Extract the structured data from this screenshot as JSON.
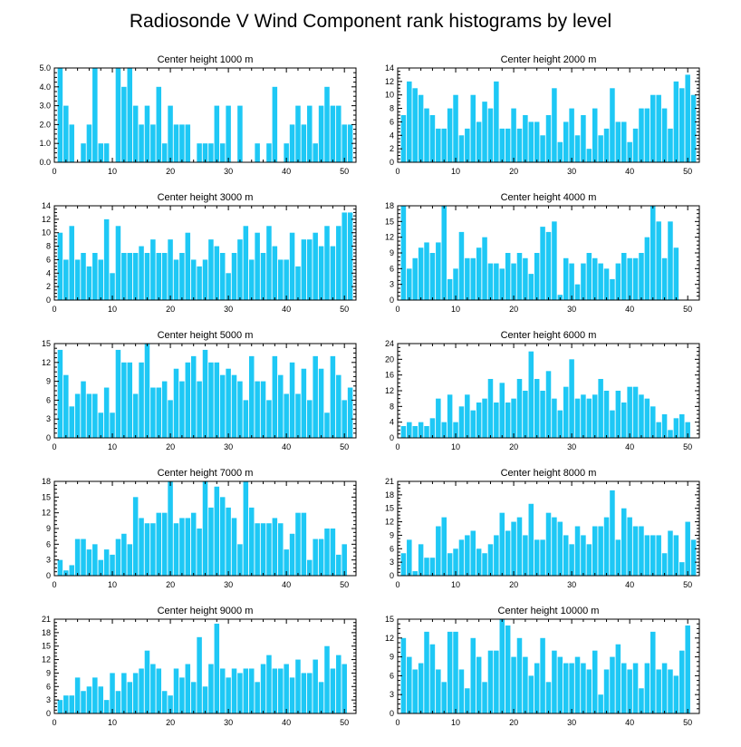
{
  "figure": {
    "title": "Radiosonde V Wind Component rank histograms by level"
  },
  "chart_data": [
    {
      "type": "bar",
      "title": "Center height 1000 m",
      "xlim": [
        0,
        52
      ],
      "xticks": [
        0,
        10,
        20,
        30,
        40,
        50
      ],
      "ylim": [
        0,
        5
      ],
      "yticks": [
        0,
        1,
        2,
        3,
        4,
        5
      ],
      "yticklabels": [
        "0.0",
        "1.0",
        "2.0",
        "3.0",
        "4.0",
        "5.0"
      ],
      "x": [
        1,
        2,
        3,
        4,
        5,
        6,
        7,
        8,
        9,
        10,
        11,
        12,
        13,
        14,
        15,
        16,
        17,
        18,
        19,
        20,
        21,
        22,
        23,
        24,
        25,
        26,
        27,
        28,
        29,
        30,
        31,
        32,
        33,
        34,
        35,
        36,
        37,
        38,
        39,
        40,
        41,
        42,
        43,
        44,
        45,
        46,
        47,
        48,
        49,
        50,
        51
      ],
      "values": [
        5,
        3,
        2,
        0,
        1,
        2,
        5,
        1,
        1,
        0,
        5,
        4,
        5,
        3,
        2,
        3,
        2,
        4,
        1,
        3,
        2,
        2,
        2,
        0,
        1,
        1,
        1,
        3,
        1,
        3,
        0,
        3,
        0,
        0,
        1,
        0,
        1,
        4,
        0,
        1,
        2,
        3,
        2,
        3,
        1,
        3,
        4,
        3,
        3,
        2,
        2
      ]
    },
    {
      "type": "bar",
      "title": "Center height 2000 m",
      "xlim": [
        0,
        52
      ],
      "xticks": [
        0,
        10,
        20,
        30,
        40,
        50
      ],
      "ylim": [
        0,
        14
      ],
      "yticks": [
        0,
        2,
        4,
        6,
        8,
        10,
        12,
        14
      ],
      "yticklabels": [
        "0",
        "2",
        "4",
        "6",
        "8",
        "10",
        "12",
        "14"
      ],
      "x": [
        1,
        2,
        3,
        4,
        5,
        6,
        7,
        8,
        9,
        10,
        11,
        12,
        13,
        14,
        15,
        16,
        17,
        18,
        19,
        20,
        21,
        22,
        23,
        24,
        25,
        26,
        27,
        28,
        29,
        30,
        31,
        32,
        33,
        34,
        35,
        36,
        37,
        38,
        39,
        40,
        41,
        42,
        43,
        44,
        45,
        46,
        47,
        48,
        49,
        50,
        51
      ],
      "values": [
        7,
        12,
        11,
        10,
        8,
        7,
        5,
        5,
        8,
        10,
        4,
        5,
        10,
        6,
        9,
        8,
        12,
        5,
        5,
        8,
        5,
        7,
        6,
        6,
        4,
        7,
        11,
        3,
        6,
        8,
        4,
        7,
        2,
        8,
        4,
        5,
        11,
        6,
        6,
        3,
        5,
        8,
        8,
        10,
        10,
        8,
        5,
        12,
        11,
        13,
        10
      ]
    },
    {
      "type": "bar",
      "title": "Center height 3000 m",
      "xlim": [
        0,
        52
      ],
      "xticks": [
        0,
        10,
        20,
        30,
        40,
        50
      ],
      "ylim": [
        0,
        14
      ],
      "yticks": [
        0,
        2,
        4,
        6,
        8,
        10,
        12,
        14
      ],
      "yticklabels": [
        "0",
        "2",
        "4",
        "6",
        "8",
        "10",
        "12",
        "14"
      ],
      "x": [
        1,
        2,
        3,
        4,
        5,
        6,
        7,
        8,
        9,
        10,
        11,
        12,
        13,
        14,
        15,
        16,
        17,
        18,
        19,
        20,
        21,
        22,
        23,
        24,
        25,
        26,
        27,
        28,
        29,
        30,
        31,
        32,
        33,
        34,
        35,
        36,
        37,
        38,
        39,
        40,
        41,
        42,
        43,
        44,
        45,
        46,
        47,
        48,
        49,
        50,
        51
      ],
      "values": [
        10,
        6,
        11,
        6,
        7,
        5,
        7,
        6,
        12,
        4,
        11,
        7,
        7,
        7,
        8,
        7,
        9,
        7,
        7,
        9,
        6,
        7,
        10,
        6,
        5,
        6,
        9,
        8,
        7,
        4,
        7,
        9,
        11,
        6,
        10,
        7,
        11,
        8,
        6,
        6,
        10,
        5,
        9,
        9,
        10,
        8,
        11,
        8,
        11,
        13,
        13
      ]
    },
    {
      "type": "bar",
      "title": "Center height 4000 m",
      "xlim": [
        0,
        52
      ],
      "xticks": [
        0,
        10,
        20,
        30,
        40,
        50
      ],
      "ylim": [
        0,
        18
      ],
      "yticks": [
        0,
        3,
        6,
        9,
        12,
        15,
        18
      ],
      "yticklabels": [
        "0",
        "3",
        "6",
        "9",
        "12",
        "15",
        "18"
      ],
      "x": [
        1,
        2,
        3,
        4,
        5,
        6,
        7,
        8,
        9,
        10,
        11,
        12,
        13,
        14,
        15,
        16,
        17,
        18,
        19,
        20,
        21,
        22,
        23,
        24,
        25,
        26,
        27,
        28,
        29,
        30,
        31,
        32,
        33,
        34,
        35,
        36,
        37,
        38,
        39,
        40,
        41,
        42,
        43,
        44,
        45,
        46,
        47,
        48,
        49,
        50,
        51
      ],
      "values": [
        18,
        6,
        8,
        10,
        11,
        9,
        11,
        18,
        4,
        6,
        13,
        8,
        8,
        10,
        12,
        7,
        7,
        6,
        9,
        7,
        9,
        8,
        5,
        9,
        14,
        13,
        15,
        1,
        8,
        7,
        3,
        7,
        9,
        8,
        7,
        6,
        4,
        7,
        9,
        8,
        8,
        9,
        12,
        18,
        15,
        8,
        15,
        10,
        0,
        0,
        0
      ]
    },
    {
      "type": "bar",
      "title": "Center height 5000 m",
      "xlim": [
        0,
        52
      ],
      "xticks": [
        0,
        10,
        20,
        30,
        40,
        50
      ],
      "ylim": [
        0,
        15
      ],
      "yticks": [
        0,
        3,
        6,
        9,
        12,
        15
      ],
      "yticklabels": [
        "0",
        "3",
        "6",
        "9",
        "12",
        "15"
      ],
      "x": [
        1,
        2,
        3,
        4,
        5,
        6,
        7,
        8,
        9,
        10,
        11,
        12,
        13,
        14,
        15,
        16,
        17,
        18,
        19,
        20,
        21,
        22,
        23,
        24,
        25,
        26,
        27,
        28,
        29,
        30,
        31,
        32,
        33,
        34,
        35,
        36,
        37,
        38,
        39,
        40,
        41,
        42,
        43,
        44,
        45,
        46,
        47,
        48,
        49,
        50,
        51
      ],
      "values": [
        14,
        10,
        5,
        7,
        9,
        7,
        7,
        4,
        8,
        4,
        14,
        12,
        12,
        7,
        12,
        15,
        8,
        8,
        9,
        6,
        11,
        9,
        12,
        13,
        9,
        14,
        12,
        12,
        10,
        11,
        10,
        9,
        6,
        13,
        9,
        9,
        6,
        13,
        10,
        7,
        12,
        7,
        11,
        6,
        13,
        11,
        4,
        13,
        10,
        6,
        8
      ]
    },
    {
      "type": "bar",
      "title": "Center height 6000 m",
      "xlim": [
        0,
        52
      ],
      "xticks": [
        0,
        10,
        20,
        30,
        40,
        50
      ],
      "ylim": [
        0,
        24
      ],
      "yticks": [
        0,
        4,
        8,
        12,
        16,
        20,
        24
      ],
      "yticklabels": [
        "0",
        "4",
        "8",
        "12",
        "16",
        "20",
        "24"
      ],
      "x": [
        1,
        2,
        3,
        4,
        5,
        6,
        7,
        8,
        9,
        10,
        11,
        12,
        13,
        14,
        15,
        16,
        17,
        18,
        19,
        20,
        21,
        22,
        23,
        24,
        25,
        26,
        27,
        28,
        29,
        30,
        31,
        32,
        33,
        34,
        35,
        36,
        37,
        38,
        39,
        40,
        41,
        42,
        43,
        44,
        45,
        46,
        47,
        48,
        49,
        50,
        51
      ],
      "values": [
        3,
        4,
        3,
        4,
        3,
        5,
        10,
        4,
        11,
        4,
        8,
        11,
        7,
        9,
        10,
        15,
        9,
        14,
        9,
        10,
        15,
        12,
        22,
        15,
        12,
        17,
        10,
        7,
        13,
        20,
        10,
        11,
        10,
        11,
        15,
        12,
        7,
        12,
        9,
        13,
        13,
        11,
        10,
        8,
        4,
        6,
        2,
        5,
        6,
        4,
        0
      ]
    },
    {
      "type": "bar",
      "title": "Center height 7000 m",
      "xlim": [
        0,
        52
      ],
      "xticks": [
        0,
        10,
        20,
        30,
        40,
        50
      ],
      "ylim": [
        0,
        18
      ],
      "yticks": [
        0,
        3,
        6,
        9,
        12,
        15,
        18
      ],
      "yticklabels": [
        "0",
        "3",
        "6",
        "9",
        "12",
        "15",
        "18"
      ],
      "x": [
        1,
        2,
        3,
        4,
        5,
        6,
        7,
        8,
        9,
        10,
        11,
        12,
        13,
        14,
        15,
        16,
        17,
        18,
        19,
        20,
        21,
        22,
        23,
        24,
        25,
        26,
        27,
        28,
        29,
        30,
        31,
        32,
        33,
        34,
        35,
        36,
        37,
        38,
        39,
        40,
        41,
        42,
        43,
        44,
        45,
        46,
        47,
        48,
        49,
        50,
        51
      ],
      "values": [
        3,
        1,
        2,
        7,
        7,
        5,
        6,
        3,
        5,
        4,
        7,
        8,
        6,
        15,
        11,
        10,
        10,
        12,
        12,
        18,
        10,
        11,
        11,
        12,
        9,
        18,
        13,
        17,
        15,
        13,
        11,
        6,
        18,
        13,
        10,
        10,
        10,
        11,
        10,
        5,
        8,
        12,
        12,
        3,
        7,
        7,
        9,
        9,
        4,
        6,
        0
      ]
    },
    {
      "type": "bar",
      "title": "Center height 8000 m",
      "xlim": [
        0,
        52
      ],
      "xticks": [
        0,
        10,
        20,
        30,
        40,
        50
      ],
      "ylim": [
        0,
        21
      ],
      "yticks": [
        0,
        3,
        6,
        9,
        12,
        15,
        18,
        21
      ],
      "yticklabels": [
        "0",
        "3",
        "6",
        "9",
        "12",
        "15",
        "18",
        "21"
      ],
      "x": [
        1,
        2,
        3,
        4,
        5,
        6,
        7,
        8,
        9,
        10,
        11,
        12,
        13,
        14,
        15,
        16,
        17,
        18,
        19,
        20,
        21,
        22,
        23,
        24,
        25,
        26,
        27,
        28,
        29,
        30,
        31,
        32,
        33,
        34,
        35,
        36,
        37,
        38,
        39,
        40,
        41,
        42,
        43,
        44,
        45,
        46,
        47,
        48,
        49,
        50,
        51
      ],
      "values": [
        5,
        8,
        1,
        7,
        4,
        4,
        11,
        13,
        5,
        6,
        8,
        9,
        10,
        6,
        5,
        7,
        9,
        14,
        10,
        12,
        13,
        9,
        16,
        8,
        8,
        14,
        13,
        12,
        9,
        7,
        11,
        9,
        7,
        11,
        11,
        13,
        19,
        8,
        15,
        13,
        11,
        11,
        9,
        9,
        9,
        5,
        10,
        9,
        3,
        12,
        8
      ]
    },
    {
      "type": "bar",
      "title": "Center height 9000 m",
      "xlim": [
        0,
        52
      ],
      "xticks": [
        0,
        10,
        20,
        30,
        40,
        50
      ],
      "ylim": [
        0,
        21
      ],
      "yticks": [
        0,
        3,
        6,
        9,
        12,
        15,
        18,
        21
      ],
      "yticklabels": [
        "0",
        "3",
        "6",
        "9",
        "12",
        "15",
        "18",
        "21"
      ],
      "x": [
        1,
        2,
        3,
        4,
        5,
        6,
        7,
        8,
        9,
        10,
        11,
        12,
        13,
        14,
        15,
        16,
        17,
        18,
        19,
        20,
        21,
        22,
        23,
        24,
        25,
        26,
        27,
        28,
        29,
        30,
        31,
        32,
        33,
        34,
        35,
        36,
        37,
        38,
        39,
        40,
        41,
        42,
        43,
        44,
        45,
        46,
        47,
        48,
        49,
        50,
        51
      ],
      "values": [
        3,
        4,
        4,
        8,
        5,
        6,
        8,
        6,
        3,
        9,
        5,
        9,
        7,
        9,
        10,
        14,
        11,
        10,
        5,
        4,
        10,
        8,
        11,
        7,
        17,
        6,
        11,
        20,
        10,
        8,
        10,
        9,
        10,
        10,
        7,
        11,
        13,
        10,
        10,
        11,
        8,
        12,
        9,
        9,
        12,
        7,
        15,
        10,
        13,
        11,
        0
      ]
    },
    {
      "type": "bar",
      "title": "Center height 10000 m",
      "xlim": [
        0,
        52
      ],
      "xticks": [
        0,
        10,
        20,
        30,
        40,
        50
      ],
      "ylim": [
        0,
        15
      ],
      "yticks": [
        0,
        3,
        6,
        9,
        12,
        15
      ],
      "yticklabels": [
        "0",
        "3",
        "6",
        "9",
        "12",
        "15"
      ],
      "x": [
        1,
        2,
        3,
        4,
        5,
        6,
        7,
        8,
        9,
        10,
        11,
        12,
        13,
        14,
        15,
        16,
        17,
        18,
        19,
        20,
        21,
        22,
        23,
        24,
        25,
        26,
        27,
        28,
        29,
        30,
        31,
        32,
        33,
        34,
        35,
        36,
        37,
        38,
        39,
        40,
        41,
        42,
        43,
        44,
        45,
        46,
        47,
        48,
        49,
        50,
        51
      ],
      "values": [
        12,
        9,
        7,
        8,
        13,
        11,
        7,
        5,
        13,
        13,
        7,
        4,
        12,
        9,
        5,
        10,
        10,
        15,
        14,
        9,
        12,
        9,
        6,
        8,
        12,
        5,
        10,
        9,
        8,
        8,
        9,
        8,
        7,
        10,
        3,
        7,
        9,
        11,
        8,
        7,
        8,
        4,
        8,
        13,
        7,
        8,
        7,
        6,
        10,
        14,
        0
      ]
    }
  ]
}
